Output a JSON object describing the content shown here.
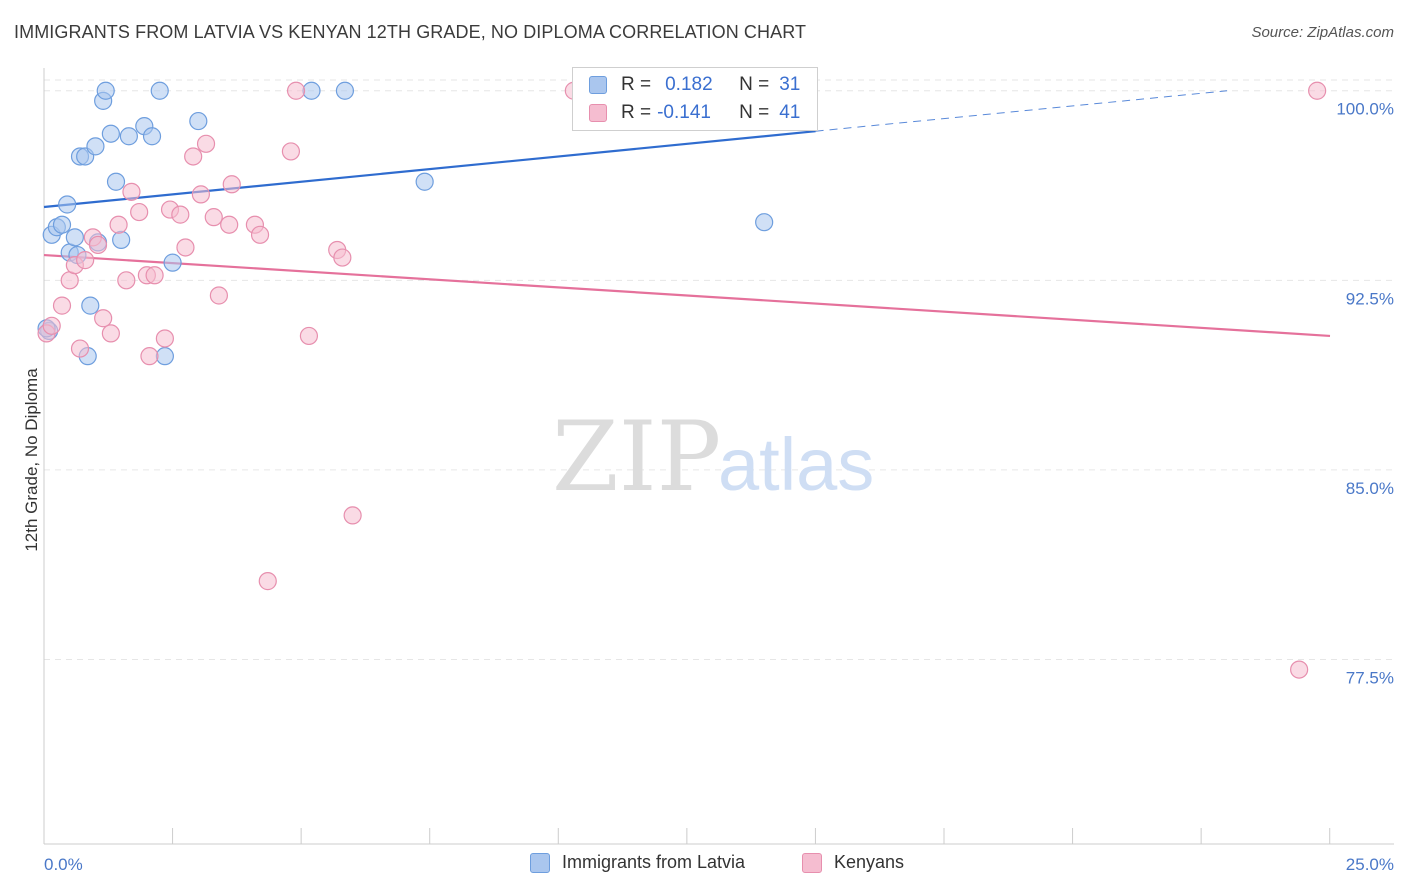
{
  "title": "IMMIGRANTS FROM LATVIA VS KENYAN 12TH GRADE, NO DIPLOMA CORRELATION CHART",
  "source": "Source: ZipAtlas.com",
  "watermark": {
    "zip": "ZIP",
    "atlas": "atlas"
  },
  "legend_top": {
    "rows": [
      {
        "r_label": "R =",
        "r_value": "0.182",
        "n_label": "N =",
        "n_value": "31"
      },
      {
        "r_label": "R =",
        "r_value": "-0.141",
        "n_label": "N =",
        "n_value": "41"
      }
    ]
  },
  "legend_bottom": [
    "Immigrants from Latvia",
    "Kenyans"
  ],
  "colors": {
    "blue_fill": "#aac6ee",
    "blue_stroke": "#6e9ede",
    "blue_line": "#2f6ccf",
    "pink_fill": "#f5bdd0",
    "pink_stroke": "#e78fae",
    "pink_line": "#e5719b",
    "grid": "#e6e6e6",
    "tick_text": "#4a78c8"
  },
  "chart_data": {
    "type": "scatter",
    "title": "IMMIGRANTS FROM LATVIA VS KENYAN 12TH GRADE, NO DIPLOMA CORRELATION CHART",
    "xlabel": "",
    "ylabel": "12th Grade, No Diploma",
    "xlim": [
      0,
      25
    ],
    "ylim": [
      70.2,
      100.9
    ],
    "x_tick_labels": [
      "0.0%",
      "25.0%"
    ],
    "y_ticks": [
      77.5,
      85.0,
      92.5,
      100.0
    ],
    "y_tick_labels": [
      "77.5%",
      "85.0%",
      "92.5%",
      "100.0%"
    ],
    "grid": "horizontal dashed",
    "series": [
      {
        "name": "Immigrants from Latvia",
        "R": 0.182,
        "N": 31,
        "points": [
          [
            0.15,
            94.3
          ],
          [
            0.25,
            94.6
          ],
          [
            0.35,
            94.7
          ],
          [
            0.45,
            95.5
          ],
          [
            0.5,
            93.6
          ],
          [
            0.6,
            94.2
          ],
          [
            0.65,
            93.5
          ],
          [
            0.7,
            97.4
          ],
          [
            0.8,
            97.4
          ],
          [
            0.9,
            91.5
          ],
          [
            0.85,
            89.5
          ],
          [
            1.0,
            97.8
          ],
          [
            1.05,
            94.0
          ],
          [
            1.15,
            99.6
          ],
          [
            1.2,
            100.0
          ],
          [
            1.3,
            98.3
          ],
          [
            1.4,
            96.4
          ],
          [
            1.5,
            94.1
          ],
          [
            1.65,
            98.2
          ],
          [
            1.95,
            98.6
          ],
          [
            2.1,
            98.2
          ],
          [
            2.25,
            100.0
          ],
          [
            2.35,
            89.5
          ],
          [
            2.5,
            93.2
          ],
          [
            3.0,
            98.8
          ],
          [
            5.2,
            100.0
          ],
          [
            5.85,
            100.0
          ],
          [
            7.4,
            96.4
          ],
          [
            14.0,
            94.8
          ],
          [
            0.1,
            90.5
          ],
          [
            0.05,
            90.6
          ]
        ],
        "trend": {
          "x": [
            0,
            15
          ],
          "y": [
            95.4,
            98.4
          ],
          "dashed_to": [
            23.0,
            100.0
          ]
        }
      },
      {
        "name": "Kenyans",
        "R": -0.141,
        "N": 41,
        "points": [
          [
            0.05,
            90.4
          ],
          [
            0.15,
            90.7
          ],
          [
            0.35,
            91.5
          ],
          [
            0.5,
            92.5
          ],
          [
            0.6,
            93.1
          ],
          [
            0.7,
            89.8
          ],
          [
            0.8,
            93.3
          ],
          [
            0.95,
            94.2
          ],
          [
            1.05,
            93.9
          ],
          [
            1.15,
            91.0
          ],
          [
            1.3,
            90.4
          ],
          [
            1.45,
            94.7
          ],
          [
            1.6,
            92.5
          ],
          [
            1.7,
            96.0
          ],
          [
            1.85,
            95.2
          ],
          [
            2.0,
            92.7
          ],
          [
            2.05,
            89.5
          ],
          [
            2.15,
            92.7
          ],
          [
            2.35,
            90.2
          ],
          [
            2.45,
            95.3
          ],
          [
            2.65,
            95.1
          ],
          [
            2.75,
            93.8
          ],
          [
            2.9,
            97.4
          ],
          [
            3.05,
            95.9
          ],
          [
            3.15,
            97.9
          ],
          [
            3.3,
            95.0
          ],
          [
            3.4,
            91.9
          ],
          [
            3.6,
            94.7
          ],
          [
            3.65,
            96.3
          ],
          [
            4.1,
            94.7
          ],
          [
            4.2,
            94.3
          ],
          [
            4.35,
            80.6
          ],
          [
            4.8,
            97.6
          ],
          [
            4.9,
            100.0
          ],
          [
            5.15,
            90.3
          ],
          [
            5.7,
            93.7
          ],
          [
            5.8,
            93.4
          ],
          [
            6.0,
            83.2
          ],
          [
            10.3,
            100.0
          ],
          [
            24.4,
            77.1
          ],
          [
            24.75,
            100.0
          ]
        ],
        "trend": {
          "x": [
            0,
            25
          ],
          "y": [
            93.5,
            90.3
          ]
        }
      }
    ]
  }
}
